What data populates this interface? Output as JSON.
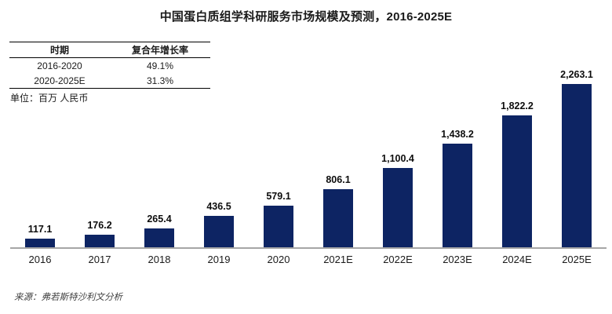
{
  "title": "中国蛋白质组学科研服务市场规模及预测，2016-2025E",
  "cagr_table": {
    "headers": [
      "时期",
      "复合年增长率"
    ],
    "rows": [
      {
        "period": "2016-2020",
        "cagr": "49.1%"
      },
      {
        "period": "2020-2025E",
        "cagr": "31.3%"
      }
    ]
  },
  "unit_note": "单位：百万 人民币",
  "source_note": "来源：弗若斯特沙利文分析",
  "chart_data": {
    "type": "bar",
    "title": "中国蛋白质组学科研服务市场规模及预测，2016-2025E",
    "categories": [
      "2016",
      "2017",
      "2018",
      "2019",
      "2020",
      "2021E",
      "2022E",
      "2023E",
      "2024E",
      "2025E"
    ],
    "values": [
      117.1,
      176.2,
      265.4,
      436.5,
      579.1,
      806.1,
      1100.4,
      1438.2,
      1822.2,
      2263.1
    ],
    "value_labels": [
      "117.1",
      "176.2",
      "265.4",
      "436.5",
      "579.1",
      "806.1",
      "1,100.4",
      "1,438.2",
      "1,822.2",
      "2,263.1"
    ],
    "xlabel": "",
    "ylabel": "单位：百万 人民币",
    "ylim": [
      0,
      2400
    ],
    "grid": false,
    "legend": null,
    "bar_color": "#0d2463",
    "axis_color": "#a6a6a6"
  }
}
